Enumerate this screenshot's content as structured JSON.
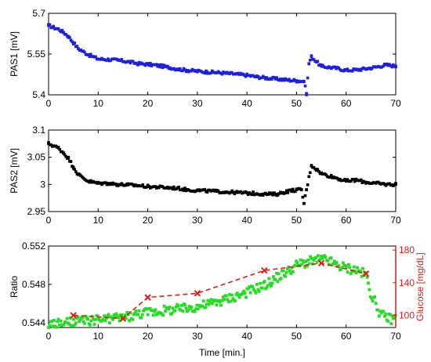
{
  "chart_data": [
    {
      "type": "scatter",
      "ylabel": "PAS1 [mV]",
      "xlim": [
        0,
        70
      ],
      "ylim": [
        5.4,
        5.7
      ],
      "xticks": [
        0,
        10,
        20,
        30,
        40,
        50,
        60,
        70
      ],
      "yticks": [
        "5.4",
        "5.55",
        "5.7"
      ],
      "color": "#1f1fe0",
      "series": [
        {
          "x": [
            0,
            1,
            2,
            3,
            4,
            5,
            6,
            8,
            10,
            12,
            14,
            16,
            18,
            20,
            22,
            24,
            26,
            28,
            30,
            32,
            34,
            36,
            38,
            40,
            42,
            44,
            46,
            48,
            50,
            51.5,
            52,
            52.5,
            53,
            55,
            58,
            60,
            62,
            64,
            66,
            68,
            70
          ],
          "y": [
            5.655,
            5.648,
            5.642,
            5.63,
            5.615,
            5.592,
            5.57,
            5.548,
            5.532,
            5.53,
            5.527,
            5.522,
            5.515,
            5.512,
            5.508,
            5.502,
            5.495,
            5.49,
            5.487,
            5.484,
            5.482,
            5.479,
            5.476,
            5.472,
            5.466,
            5.462,
            5.458,
            5.455,
            5.452,
            5.45,
            5.405,
            5.515,
            5.54,
            5.505,
            5.498,
            5.49,
            5.492,
            5.496,
            5.502,
            5.51,
            5.506
          ]
        }
      ]
    },
    {
      "type": "scatter",
      "ylabel": "PAS2 [mV]",
      "xlim": [
        0,
        70
      ],
      "ylim": [
        2.95,
        3.1
      ],
      "xticks": [
        0,
        10,
        20,
        30,
        40,
        50,
        60,
        70
      ],
      "yticks": [
        "2.95",
        "3",
        "3.05",
        "3.1"
      ],
      "color": "#000000",
      "series": [
        {
          "x": [
            0,
            1,
            2,
            3,
            4,
            5,
            6,
            8,
            10,
            12,
            14,
            16,
            18,
            20,
            22,
            24,
            26,
            28,
            30,
            32,
            34,
            36,
            38,
            40,
            42,
            44,
            46,
            48,
            50,
            51,
            51.5,
            52,
            53,
            54,
            55,
            58,
            60,
            62,
            64,
            66,
            68,
            70
          ],
          "y": [
            3.075,
            3.071,
            3.067,
            3.058,
            3.048,
            3.032,
            3.018,
            3.006,
            3.002,
            3.002,
            3.0,
            2.999,
            2.998,
            2.996,
            2.995,
            2.994,
            2.993,
            2.99,
            2.989,
            2.988,
            2.987,
            2.986,
            2.985,
            2.984,
            2.983,
            2.982,
            2.982,
            2.987,
            2.99,
            2.99,
            2.965,
            2.99,
            3.035,
            3.028,
            3.02,
            3.012,
            3.006,
            3.008,
            3.004,
            3.002,
            3.0,
            3.0
          ]
        }
      ]
    },
    {
      "type": "scatter",
      "ylabel": "Ratio",
      "ylabel_right": "Glucose [mg/dL]",
      "xlabel": "Time [min.]",
      "xlim": [
        0,
        70
      ],
      "ylim": [
        0.5435,
        0.552
      ],
      "ylim_right": [
        85,
        185
      ],
      "xticks": [
        0,
        10,
        20,
        30,
        40,
        50,
        60,
        70
      ],
      "yticks": [
        "0.544",
        "0.548",
        "0.552"
      ],
      "yticks_right": [
        "100",
        "140",
        "180"
      ],
      "ratio_color": "#22dd22",
      "glucose_color": "#e21b1b",
      "series": [
        {
          "x": [
            0,
            2,
            4,
            6,
            8,
            10,
            12,
            14,
            16,
            18,
            20,
            22,
            24,
            26,
            28,
            30,
            32,
            34,
            36,
            38,
            40,
            42,
            44,
            46,
            48,
            50,
            52,
            54,
            56,
            58,
            60,
            62,
            64,
            65,
            66,
            67,
            68,
            69,
            70
          ],
          "y": [
            0.5438,
            0.5439,
            0.544,
            0.5441,
            0.5442,
            0.5443,
            0.5444,
            0.5445,
            0.5447,
            0.5449,
            0.5451,
            0.5452,
            0.5453,
            0.5454,
            0.5455,
            0.5457,
            0.5459,
            0.5462,
            0.5465,
            0.5468,
            0.5472,
            0.5476,
            0.548,
            0.5487,
            0.5493,
            0.55,
            0.5503,
            0.5505,
            0.5506,
            0.55,
            0.5497,
            0.5495,
            0.549,
            0.547,
            0.546,
            0.5448,
            0.5446,
            0.5444,
            0.5445
          ]
        },
        {
          "x": [
            5,
            15,
            20,
            30,
            43.5,
            55,
            64
          ],
          "y": [
            100,
            96,
            122,
            127,
            155,
            164,
            151
          ]
        }
      ]
    }
  ]
}
